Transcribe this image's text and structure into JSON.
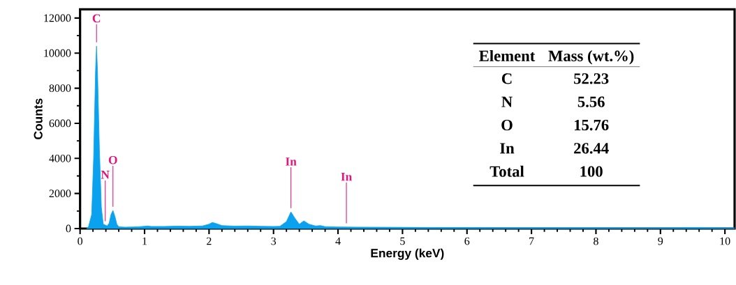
{
  "chart_data": {
    "type": "area",
    "xlabel": "Energy (keV)",
    "ylabel": "Counts",
    "color": "#0aa2ee",
    "x": [
      0.1,
      0.13,
      0.18,
      0.21,
      0.24,
      0.255,
      0.27,
      0.3,
      0.33,
      0.36,
      0.39,
      0.42,
      0.45,
      0.48,
      0.51,
      0.54,
      0.57,
      0.6,
      0.7,
      0.8,
      0.9,
      1.0,
      1.05,
      1.1,
      1.3,
      1.5,
      1.7,
      1.9,
      2.0,
      2.05,
      2.1,
      2.2,
      2.4,
      2.6,
      2.8,
      3.0,
      3.1,
      3.2,
      3.27,
      3.33,
      3.4,
      3.47,
      3.55,
      3.65,
      3.73,
      3.8,
      4.0,
      4.13,
      4.5,
      5.0,
      5.5,
      6.0,
      6.5,
      7.0,
      7.5,
      8.0,
      8.5,
      9.0,
      9.5,
      10.0,
      10.15
    ],
    "values": [
      0,
      100,
      800,
      4000,
      9000,
      10400,
      9000,
      4500,
      1200,
      250,
      200,
      150,
      300,
      800,
      1030,
      700,
      250,
      100,
      80,
      90,
      100,
      130,
      150,
      120,
      120,
      140,
      130,
      150,
      250,
      350,
      300,
      170,
      140,
      150,
      130,
      120,
      130,
      400,
      950,
      600,
      250,
      440,
      250,
      150,
      170,
      110,
      90,
      85,
      80,
      70,
      60,
      60,
      50,
      50,
      50,
      50,
      40,
      40,
      60,
      40,
      40
    ],
    "xlim": [
      0,
      10.15
    ],
    "ylim": [
      0,
      12500
    ],
    "xticks": [
      0,
      1,
      2,
      3,
      4,
      5,
      6,
      7,
      8,
      9,
      10
    ],
    "yticks": [
      0,
      2000,
      4000,
      6000,
      8000,
      10000,
      12000
    ],
    "annotations": [
      {
        "text": "C",
        "x": 0.255,
        "y": 10400
      },
      {
        "text": "N",
        "x": 0.39,
        "y": 200
      },
      {
        "text": "O",
        "x": 0.51,
        "y": 1030
      },
      {
        "text": "In",
        "x": 3.27,
        "y": 950
      },
      {
        "text": "In",
        "x": 4.13,
        "y": 85
      },
      "Element",
      "Mass (wt.%)",
      "C",
      "52.23",
      "N",
      "5.56",
      "O",
      "15.76",
      "In",
      "26.44",
      "Total",
      "100"
    ]
  }
}
